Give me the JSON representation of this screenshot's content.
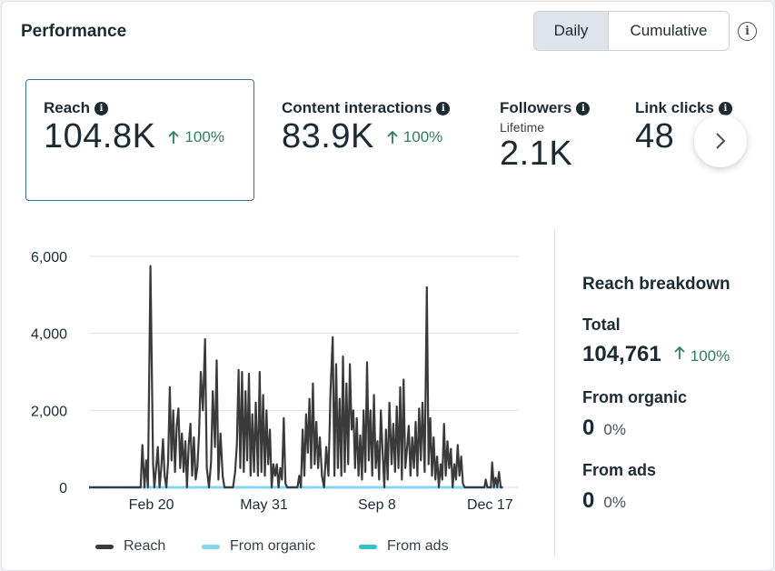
{
  "header": {
    "title": "Performance",
    "toggle": {
      "daily": "Daily",
      "cumulative": "Cumulative"
    }
  },
  "metrics": [
    {
      "label": "Reach",
      "value": "104.8K",
      "change": "100%"
    },
    {
      "label": "Content interactions",
      "value": "83.9K",
      "change": "100%"
    },
    {
      "label": "Followers",
      "sub": "Lifetime",
      "value": "2.1K"
    },
    {
      "label": "Link clicks",
      "value": "48",
      "change": "%"
    }
  ],
  "breakdown": {
    "title": "Reach breakdown",
    "total_label": "Total",
    "total_value": "104,761",
    "total_change": "100%",
    "organic_label": "From organic",
    "organic_value": "0",
    "organic_pct": "0%",
    "ads_label": "From ads",
    "ads_value": "0",
    "ads_pct": "0%"
  },
  "legend": {
    "reach": "Reach",
    "organic": "From organic",
    "ads": "From ads"
  },
  "colors": {
    "reach": "#3a3a3a",
    "organic": "#88d4f3",
    "ads": "#31c3c7",
    "up": "#31805a"
  },
  "chart_data": {
    "type": "line",
    "title": "",
    "xlabel": "",
    "ylabel": "",
    "ylim": [
      0,
      6000
    ],
    "y_ticks": [
      0,
      2000,
      4000,
      6000
    ],
    "y_tick_labels": [
      "0",
      "2,000",
      "4,000",
      "6,000"
    ],
    "x_range": [
      0,
      100
    ],
    "x_ticks": [
      {
        "x": 14.5,
        "label": "Feb 20"
      },
      {
        "x": 40.7,
        "label": "May 31"
      },
      {
        "x": 67.0,
        "label": "Sep 8"
      },
      {
        "x": 93.3,
        "label": "Dec 17"
      }
    ],
    "series": [
      {
        "name": "Reach",
        "points": [
          [
            0,
            0
          ],
          [
            12,
            0
          ],
          [
            12.4,
            1100
          ],
          [
            12.9,
            0
          ],
          [
            13.3,
            700
          ],
          [
            13.7,
            0
          ],
          [
            14.3,
            5750
          ],
          [
            14.9,
            600
          ],
          [
            15.2,
            0
          ],
          [
            15.6,
            500
          ],
          [
            16,
            1050
          ],
          [
            16.4,
            0
          ],
          [
            16.8,
            500
          ],
          [
            17.2,
            1250
          ],
          [
            17.6,
            300
          ],
          [
            18,
            0
          ],
          [
            18.4,
            650
          ],
          [
            18.8,
            2600
          ],
          [
            19.2,
            700
          ],
          [
            19.6,
            2000
          ],
          [
            20,
            400
          ],
          [
            20.4,
            1600
          ],
          [
            20.8,
            2050
          ],
          [
            21.2,
            500
          ],
          [
            21.6,
            1400
          ],
          [
            22,
            400
          ],
          [
            22.4,
            1200
          ],
          [
            22.8,
            0
          ],
          [
            23.2,
            1100
          ],
          [
            23.6,
            1650
          ],
          [
            24,
            300
          ],
          [
            24.4,
            1300
          ],
          [
            24.8,
            200
          ],
          [
            25.2,
            500
          ],
          [
            25.6,
            1400
          ],
          [
            26,
            3000
          ],
          [
            26.5,
            2000
          ],
          [
            27,
            3850
          ],
          [
            27.4,
            500
          ],
          [
            27.9,
            0
          ],
          [
            28.4,
            650
          ],
          [
            28.8,
            2500
          ],
          [
            29.3,
            1050
          ],
          [
            29.7,
            3300
          ],
          [
            30.1,
            200
          ],
          [
            30.6,
            1400
          ],
          [
            31.1,
            300
          ],
          [
            31.5,
            0
          ],
          [
            33.5,
            0
          ],
          [
            34,
            400
          ],
          [
            34.4,
            1100
          ],
          [
            34.8,
            3050
          ],
          [
            35.2,
            500
          ],
          [
            35.6,
            3000
          ],
          [
            36,
            400
          ],
          [
            36.4,
            2500
          ],
          [
            36.8,
            700
          ],
          [
            37.2,
            2950
          ],
          [
            37.6,
            300
          ],
          [
            38,
            1900
          ],
          [
            38.4,
            400
          ],
          [
            38.8,
            2200
          ],
          [
            39.3,
            300
          ],
          [
            39.7,
            3000
          ],
          [
            40.1,
            400
          ],
          [
            40.5,
            2400
          ],
          [
            40.9,
            300
          ],
          [
            41.3,
            2000
          ],
          [
            41.7,
            600
          ],
          [
            42.1,
            1500
          ],
          [
            42.5,
            0
          ],
          [
            42.9,
            600
          ],
          [
            43.3,
            300
          ],
          [
            43.7,
            600
          ],
          [
            44.1,
            0
          ],
          [
            44.5,
            500
          ],
          [
            44.9,
            200
          ],
          [
            45.3,
            1800
          ],
          [
            45.7,
            100
          ],
          [
            46.1,
            0
          ],
          [
            48.5,
            0
          ],
          [
            48.9,
            300
          ],
          [
            49.3,
            0
          ],
          [
            49.7,
            1500
          ],
          [
            50.1,
            300
          ],
          [
            50.5,
            1900
          ],
          [
            50.9,
            900
          ],
          [
            51.3,
            2300
          ],
          [
            51.7,
            500
          ],
          [
            52.1,
            2700
          ],
          [
            52.5,
            600
          ],
          [
            52.9,
            1700
          ],
          [
            53.3,
            500
          ],
          [
            53.7,
            1300
          ],
          [
            54.2,
            300
          ],
          [
            54.7,
            0
          ],
          [
            55.2,
            1050
          ],
          [
            55.7,
            300
          ],
          [
            56.2,
            2500
          ],
          [
            56.7,
            3900
          ],
          [
            57.1,
            300
          ],
          [
            57.5,
            3200
          ],
          [
            57.9,
            500
          ],
          [
            58.3,
            2300
          ],
          [
            58.7,
            300
          ],
          [
            59.1,
            3400
          ],
          [
            59.5,
            400
          ],
          [
            59.9,
            2700
          ],
          [
            60.3,
            600
          ],
          [
            60.7,
            3200
          ],
          [
            61.1,
            1500
          ],
          [
            61.5,
            2000
          ],
          [
            61.9,
            500
          ],
          [
            62.3,
            1800
          ],
          [
            62.7,
            300
          ],
          [
            63.1,
            1350
          ],
          [
            63.5,
            200
          ],
          [
            63.9,
            2000
          ],
          [
            64.3,
            400
          ],
          [
            64.7,
            3250
          ],
          [
            65.1,
            700
          ],
          [
            65.5,
            2000
          ],
          [
            65.9,
            300
          ],
          [
            66.3,
            2400
          ],
          [
            66.7,
            500
          ],
          [
            67.1,
            1200
          ],
          [
            67.5,
            200
          ],
          [
            67.9,
            2000
          ],
          [
            68.3,
            900
          ],
          [
            68.7,
            0
          ],
          [
            69.1,
            1500
          ],
          [
            69.5,
            200
          ],
          [
            69.9,
            2200
          ],
          [
            70.4,
            600
          ],
          [
            70.8,
            1650
          ],
          [
            71.2,
            400
          ],
          [
            71.6,
            2100
          ],
          [
            72,
            500
          ],
          [
            72.4,
            2600
          ],
          [
            72.8,
            200
          ],
          [
            73.2,
            2800
          ],
          [
            73.6,
            500
          ],
          [
            74,
            1000
          ],
          [
            74.4,
            1600
          ],
          [
            74.8,
            300
          ],
          [
            75.2,
            1300
          ],
          [
            75.6,
            500
          ],
          [
            76,
            1700
          ],
          [
            76.4,
            300
          ],
          [
            76.8,
            2050
          ],
          [
            77.2,
            700
          ],
          [
            77.6,
            2200
          ],
          [
            78.1,
            400
          ],
          [
            78.6,
            5200
          ],
          [
            79,
            600
          ],
          [
            79.4,
            1800
          ],
          [
            79.8,
            300
          ],
          [
            80.2,
            1300
          ],
          [
            80.6,
            200
          ],
          [
            81,
            800
          ],
          [
            81.4,
            0
          ],
          [
            81.8,
            600
          ],
          [
            82.2,
            200
          ],
          [
            82.6,
            1650
          ],
          [
            83,
            300
          ],
          [
            83.4,
            1200
          ],
          [
            83.8,
            500
          ],
          [
            84.2,
            1000
          ],
          [
            84.6,
            0
          ],
          [
            85,
            600
          ],
          [
            85.4,
            200
          ],
          [
            85.8,
            1100
          ],
          [
            86.2,
            300
          ],
          [
            86.6,
            800
          ],
          [
            87,
            100
          ],
          [
            87.4,
            0
          ],
          [
            92,
            0
          ],
          [
            92.3,
            200
          ],
          [
            92.7,
            0
          ],
          [
            93.5,
            0
          ],
          [
            93.8,
            650
          ],
          [
            94.2,
            0
          ],
          [
            94.6,
            250
          ],
          [
            95,
            0
          ],
          [
            95.4,
            400
          ],
          [
            95.8,
            0
          ],
          [
            96.3,
            0
          ]
        ]
      },
      {
        "name": "From organic",
        "points": [
          [
            0,
            0
          ],
          [
            96.3,
            0
          ]
        ]
      },
      {
        "name": "From ads",
        "points": [
          [
            0,
            0
          ],
          [
            96.3,
            0
          ]
        ]
      }
    ]
  }
}
